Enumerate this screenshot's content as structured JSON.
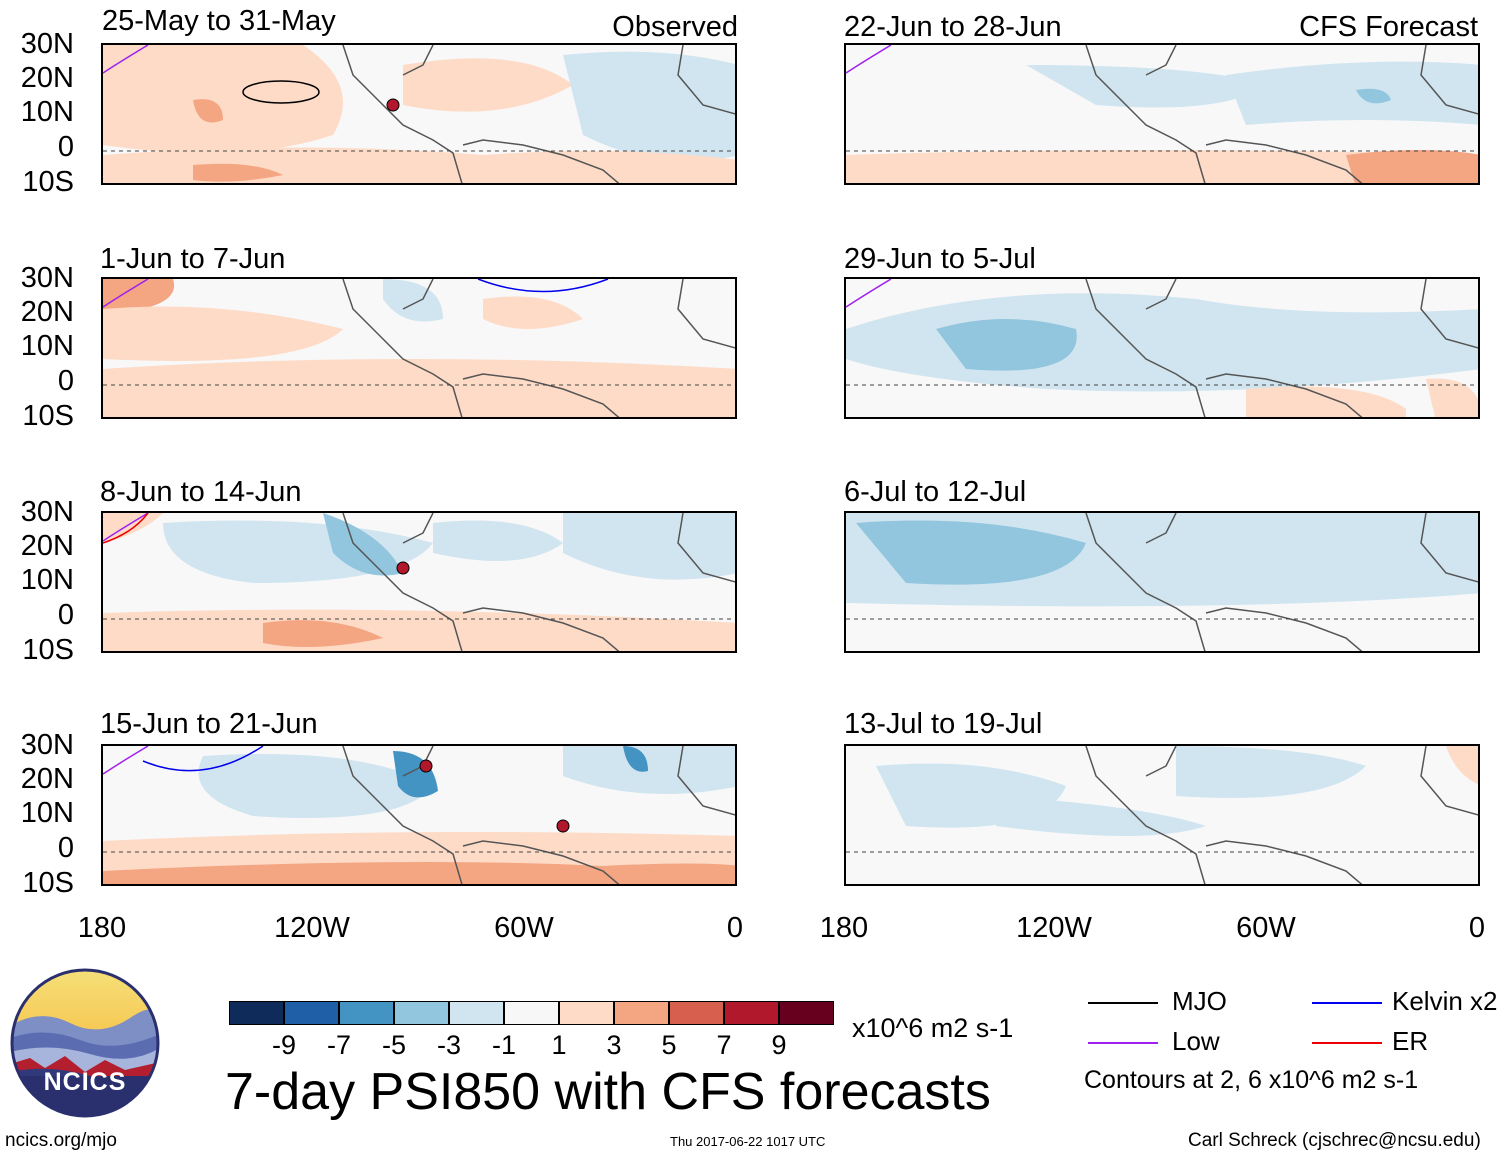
{
  "panels": {
    "left": [
      {
        "title": "25-May to 31-May",
        "label": "Observed"
      },
      {
        "title": "1-Jun to 7-Jun",
        "label": ""
      },
      {
        "title": "8-Jun to 14-Jun",
        "label": ""
      },
      {
        "title": "15-Jun to 21-Jun",
        "label": ""
      }
    ],
    "right": [
      {
        "title": "22-Jun to 28-Jun",
        "label": "CFS Forecast"
      },
      {
        "title": "29-Jun to 5-Jul",
        "label": ""
      },
      {
        "title": "6-Jul to 12-Jul",
        "label": ""
      },
      {
        "title": "13-Jul to 19-Jul",
        "label": ""
      }
    ]
  },
  "lat_labels": [
    "30N",
    "20N",
    "10N",
    "0",
    "10S"
  ],
  "lon_labels": [
    "180",
    "120W",
    "60W",
    "0"
  ],
  "colorbar": {
    "labels": [
      "-9",
      "-7",
      "-5",
      "-3",
      "-1",
      "1",
      "3",
      "5",
      "7",
      "9"
    ],
    "colors": [
      "#0e2b5a",
      "#1f5fa8",
      "#4393c3",
      "#92c5de",
      "#d1e5f0",
      "#f7f7f7",
      "#fddbc7",
      "#f4a582",
      "#d6604d",
      "#b2182b",
      "#67001f"
    ],
    "units": "x10^6 m2 s-1"
  },
  "title": "7-day PSI850 with CFS forecasts",
  "legend": {
    "items": [
      {
        "label": "MJO",
        "color": "#000000"
      },
      {
        "label": "Kelvin x2",
        "color": "#0000ee"
      },
      {
        "label": "Low",
        "color": "#a020f0"
      },
      {
        "label": "ER",
        "color": "#ee0000"
      }
    ],
    "contours_note": "Contours at 2, 6 x10^6 m2 s-1"
  },
  "footer": {
    "url": "ncics.org/mjo",
    "timestamp": "Thu 2017-06-22 1017 UTC",
    "author": "Carl Schreck (cjschrec@ncsu.edu)"
  },
  "logo": {
    "text": "NCICS"
  }
}
